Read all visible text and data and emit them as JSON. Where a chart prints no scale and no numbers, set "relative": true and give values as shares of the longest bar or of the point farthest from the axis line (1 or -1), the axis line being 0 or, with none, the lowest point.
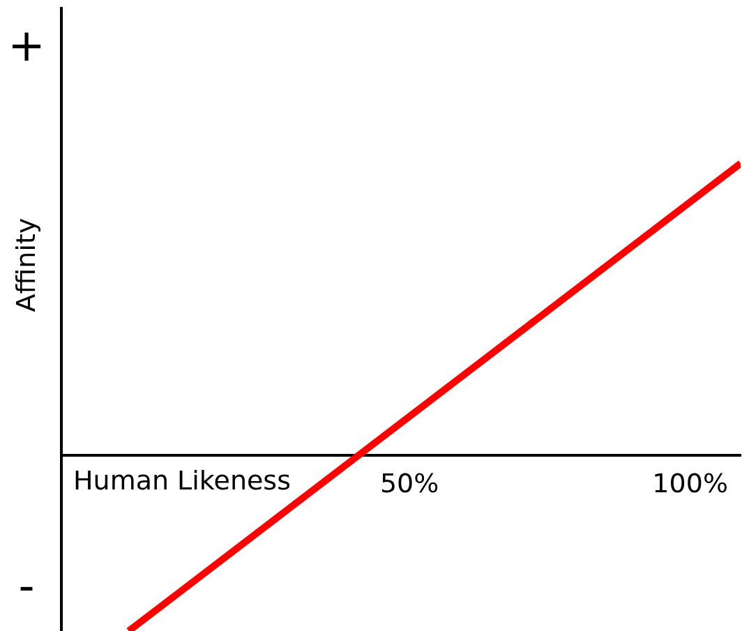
{
  "chart_data": {
    "type": "line",
    "xlabel": "Human Likeness",
    "ylabel": "Affinity",
    "x": [
      0,
      109
    ],
    "values": [
      -0.6,
      1
    ],
    "color": "#ff0000",
    "relative": true,
    "xlim": [
      -12,
      109
    ],
    "xticks": [
      {
        "value": 50,
        "label": "50%"
      },
      {
        "value": 100,
        "label": "100%"
      }
    ],
    "annotations": [
      "+",
      "-"
    ],
    "grid": false,
    "legend": false,
    "marker": "none",
    "line_style": "solid"
  }
}
